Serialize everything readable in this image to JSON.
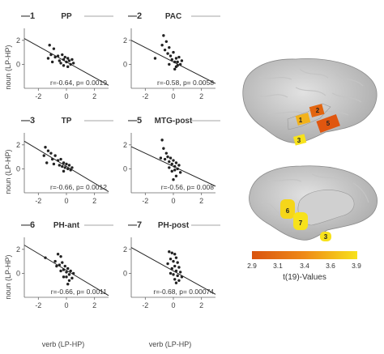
{
  "figure": {
    "y_axis_label": "noun (LP-HP)",
    "x_axis_label": "verb (LP-HP)",
    "colorbar": {
      "title": "t(19)-Values",
      "ticks": [
        "2.9",
        "3.1",
        "3.4",
        "3.6",
        "3.9"
      ],
      "color_low": "#d9530f",
      "color_high": "#f7e21b"
    },
    "roi_labels_lateral": [
      "1",
      "2",
      "5",
      "3"
    ],
    "roi_labels_medial": [
      "6",
      "7",
      "3"
    ]
  },
  "chart_data": [
    {
      "type": "scatter",
      "number": "1",
      "title": "PP",
      "stat": "r=-0.64, p= 0.0019",
      "xlim": [
        -3,
        3
      ],
      "ylim": [
        -2,
        3
      ],
      "x_ticks": [
        "-2",
        "0",
        "2"
      ],
      "y_ticks": [
        "0",
        "2"
      ],
      "fit": {
        "slope": -0.65,
        "intercept": 0.2
      },
      "points": [
        [
          -1.2,
          1.6
        ],
        [
          -0.9,
          1.3
        ],
        [
          -1.1,
          0.8
        ],
        [
          -1.3,
          0.5
        ],
        [
          -0.8,
          0.6
        ],
        [
          -1.0,
          0.2
        ],
        [
          -0.6,
          0.7
        ],
        [
          -0.5,
          0.3
        ],
        [
          -0.3,
          0.8
        ],
        [
          -0.2,
          0.4
        ],
        [
          -0.4,
          0.1
        ],
        [
          -0.1,
          0.6
        ],
        [
          0.0,
          0.2
        ],
        [
          0.1,
          0.5
        ],
        [
          0.2,
          0.3
        ],
        [
          0.3,
          0.0
        ],
        [
          0.4,
          0.4
        ],
        [
          0.1,
          -0.2
        ],
        [
          -0.2,
          -0.1
        ],
        [
          0.5,
          0.1
        ]
      ]
    },
    {
      "type": "scatter",
      "number": "2",
      "title": "PAC",
      "stat": "r=-0.58, p= 0.0058",
      "xlim": [
        -3,
        3
      ],
      "ylim": [
        -2,
        3
      ],
      "x_ticks": [
        "-2",
        "0",
        "2"
      ],
      "y_ticks": [
        "0",
        "2"
      ],
      "fit": {
        "slope": -0.6,
        "intercept": 0.2
      },
      "points": [
        [
          -0.7,
          2.4
        ],
        [
          -0.5,
          1.9
        ],
        [
          -0.8,
          1.6
        ],
        [
          -1.3,
          0.5
        ],
        [
          -0.6,
          1.2
        ],
        [
          -0.4,
          0.9
        ],
        [
          -0.3,
          1.4
        ],
        [
          -0.2,
          0.7
        ],
        [
          -0.1,
          0.4
        ],
        [
          0.0,
          1.0
        ],
        [
          0.1,
          0.2
        ],
        [
          0.2,
          0.5
        ],
        [
          0.3,
          -0.1
        ],
        [
          0.4,
          0.6
        ],
        [
          0.5,
          0.0
        ],
        [
          0.6,
          0.3
        ],
        [
          -0.3,
          0.0
        ],
        [
          0.1,
          -0.4
        ],
        [
          0.3,
          0.2
        ],
        [
          0.2,
          -0.2
        ]
      ]
    },
    {
      "type": "scatter",
      "number": "3",
      "title": "TP",
      "stat": "r=-0.66, p= 0.0012",
      "xlim": [
        -3,
        3
      ],
      "ylim": [
        -2,
        3
      ],
      "x_ticks": [
        "-2",
        "0",
        "2"
      ],
      "y_ticks": [
        "0",
        "2"
      ],
      "fit": {
        "slope": -0.7,
        "intercept": 0.2
      },
      "points": [
        [
          -1.5,
          1.8
        ],
        [
          -1.3,
          1.5
        ],
        [
          -1.6,
          1.1
        ],
        [
          -1.1,
          1.3
        ],
        [
          -1.0,
          0.8
        ],
        [
          -1.4,
          0.5
        ],
        [
          -0.8,
          1.1
        ],
        [
          -0.9,
          0.4
        ],
        [
          -0.6,
          0.7
        ],
        [
          -0.5,
          0.3
        ],
        [
          -0.4,
          0.8
        ],
        [
          -0.3,
          0.2
        ],
        [
          -0.2,
          0.5
        ],
        [
          -0.1,
          0.1
        ],
        [
          0.0,
          0.4
        ],
        [
          0.1,
          0.0
        ],
        [
          0.2,
          0.3
        ],
        [
          0.3,
          -0.1
        ],
        [
          -0.2,
          -0.2
        ],
        [
          0.4,
          0.1
        ]
      ]
    },
    {
      "type": "scatter",
      "number": "5",
      "title": "MTG-post",
      "stat": "r=-0.56, p= 0.008",
      "xlim": [
        -3,
        3
      ],
      "ylim": [
        -2,
        3
      ],
      "x_ticks": [
        "-2",
        "0",
        "2"
      ],
      "y_ticks": [
        "0",
        "2"
      ],
      "fit": {
        "slope": -0.55,
        "intercept": 0.2
      },
      "points": [
        [
          -0.8,
          2.4
        ],
        [
          -0.7,
          1.7
        ],
        [
          -0.5,
          1.3
        ],
        [
          -0.9,
          0.9
        ],
        [
          -0.6,
          0.8
        ],
        [
          -0.4,
          1.0
        ],
        [
          -0.3,
          0.6
        ],
        [
          -0.2,
          0.9
        ],
        [
          -0.1,
          0.4
        ],
        [
          0.0,
          0.7
        ],
        [
          0.1,
          0.2
        ],
        [
          0.2,
          0.5
        ],
        [
          0.3,
          0.0
        ],
        [
          0.4,
          0.3
        ],
        [
          0.5,
          -0.3
        ],
        [
          0.2,
          -0.6
        ],
        [
          -0.1,
          -0.2
        ],
        [
          0.0,
          -0.9
        ],
        [
          -0.3,
          0.1
        ],
        [
          0.1,
          -0.1
        ]
      ]
    },
    {
      "type": "scatter",
      "number": "6",
      "title": "PH-ant",
      "stat": "r=-0.66, p= 0.0011",
      "xlim": [
        -3,
        3
      ],
      "ylim": [
        -2,
        3
      ],
      "x_ticks": [
        "-2",
        "0",
        "2"
      ],
      "y_ticks": [
        "0",
        "2"
      ],
      "fit": {
        "slope": -0.7,
        "intercept": 0.25
      },
      "points": [
        [
          -1.5,
          1.3
        ],
        [
          -0.8,
          1.0
        ],
        [
          -0.6,
          1.6
        ],
        [
          -0.4,
          1.4
        ],
        [
          -0.7,
          0.6
        ],
        [
          -0.5,
          0.7
        ],
        [
          -0.3,
          0.9
        ],
        [
          -0.2,
          0.3
        ],
        [
          -0.4,
          0.2
        ],
        [
          -0.1,
          0.6
        ],
        [
          0.0,
          0.1
        ],
        [
          0.1,
          0.4
        ],
        [
          0.0,
          -0.3
        ],
        [
          0.2,
          -0.1
        ],
        [
          0.3,
          0.2
        ],
        [
          0.4,
          -0.4
        ],
        [
          0.2,
          -0.6
        ],
        [
          -0.2,
          -0.3
        ],
        [
          0.1,
          -0.9
        ],
        [
          0.5,
          0.0
        ]
      ]
    },
    {
      "type": "scatter",
      "number": "7",
      "title": "PH-post",
      "stat": "r=-0.68, p= 0.00074",
      "xlim": [
        -3,
        3
      ],
      "ylim": [
        -2,
        3
      ],
      "x_ticks": [
        "-2",
        "0",
        "2"
      ],
      "y_ticks": [
        "0",
        "2"
      ],
      "fit": {
        "slope": -0.65,
        "intercept": 0.2
      },
      "points": [
        [
          -0.3,
          1.8
        ],
        [
          -0.1,
          1.7
        ],
        [
          0.1,
          1.6
        ],
        [
          0.2,
          1.3
        ],
        [
          -0.2,
          1.2
        ],
        [
          0.0,
          1.0
        ],
        [
          0.3,
          0.9
        ],
        [
          -0.4,
          0.8
        ],
        [
          0.1,
          0.6
        ],
        [
          0.4,
          0.5
        ],
        [
          -0.1,
          0.4
        ],
        [
          0.2,
          0.2
        ],
        [
          0.5,
          0.1
        ],
        [
          0.0,
          -0.1
        ],
        [
          0.3,
          -0.2
        ],
        [
          0.6,
          -0.3
        ],
        [
          0.1,
          -0.5
        ],
        [
          0.4,
          -0.6
        ],
        [
          0.2,
          -0.8
        ],
        [
          -0.2,
          0.0
        ]
      ]
    }
  ]
}
